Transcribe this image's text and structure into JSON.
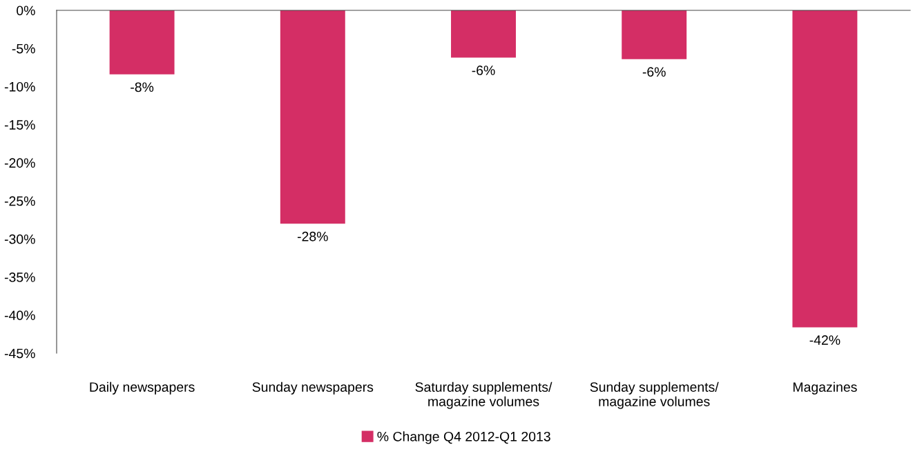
{
  "chart_data": {
    "type": "bar",
    "categories": [
      "Daily newspapers",
      "Sunday newspapers",
      "Saturday supplements/\nmagazine volumes",
      "Sunday supplements/\nmagazine volumes",
      "Magazines"
    ],
    "series": [
      {
        "name": "% Change Q4 2012-Q1 2013",
        "color": "#d42e65",
        "values": [
          -8.4,
          -28.0,
          -6.2,
          -6.4,
          -41.6
        ],
        "value_labels": [
          "-8%",
          "-28%",
          "-6%",
          "-6%",
          "-42%"
        ]
      }
    ],
    "ylim": [
      -45,
      0
    ],
    "yticks": [
      {
        "value": 0,
        "label": "0%"
      },
      {
        "value": -5,
        "label": "-5%"
      },
      {
        "value": -10,
        "label": "-10%"
      },
      {
        "value": -15,
        "label": "-15%"
      },
      {
        "value": -20,
        "label": "-20%"
      },
      {
        "value": -25,
        "label": "-25%"
      },
      {
        "value": -30,
        "label": "-30%"
      },
      {
        "value": -35,
        "label": "-35%"
      },
      {
        "value": -40,
        "label": "-40%"
      },
      {
        "value": -45,
        "label": "-45%"
      }
    ],
    "grid": false,
    "legend": "bottom"
  }
}
